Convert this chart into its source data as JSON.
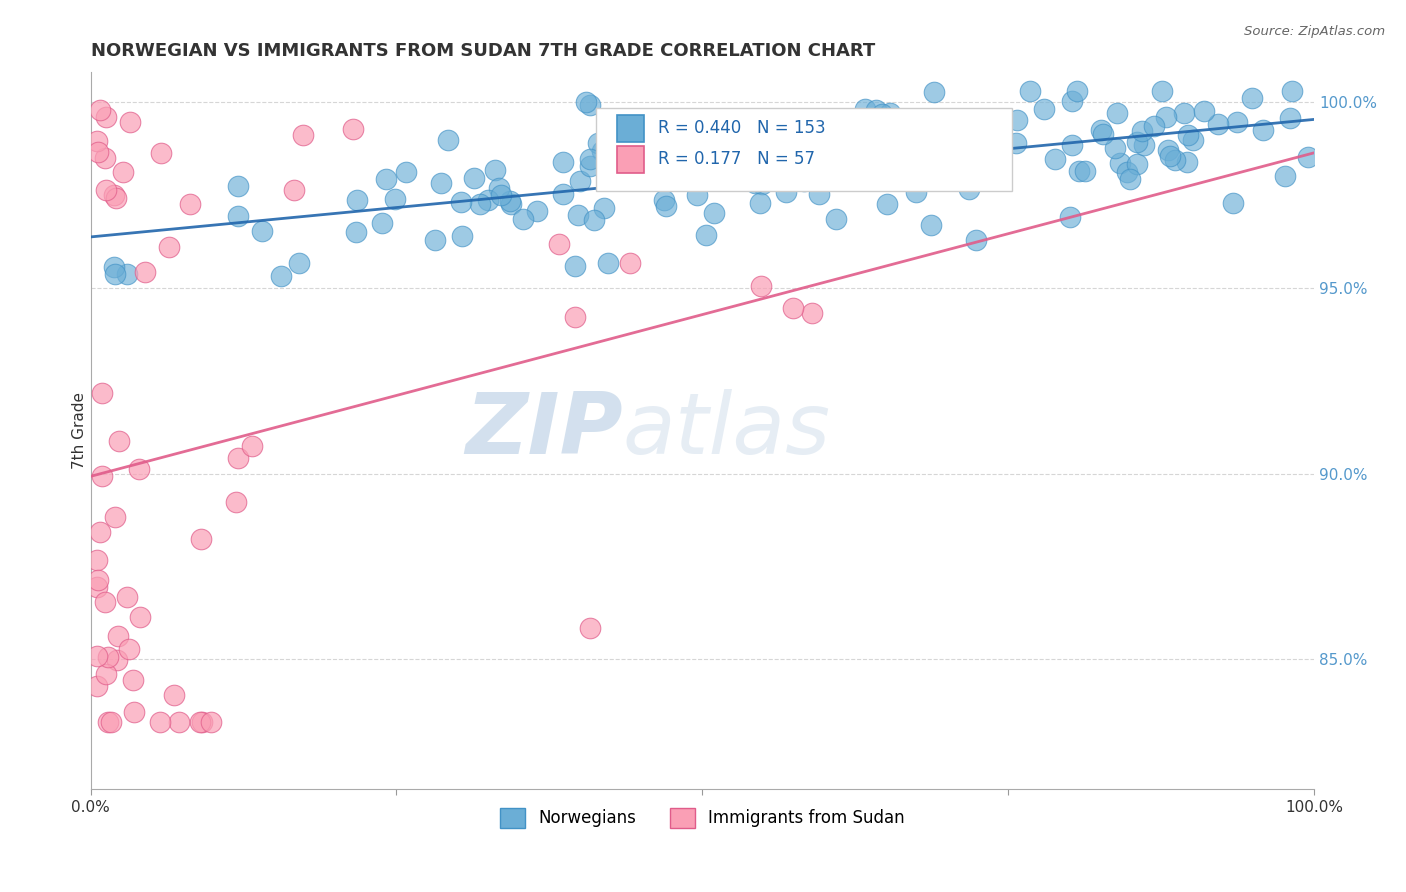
{
  "title": "NORWEGIAN VS IMMIGRANTS FROM SUDAN 7TH GRADE CORRELATION CHART",
  "source": "Source: ZipAtlas.com",
  "ylabel": "7th Grade",
  "xlim": [
    0,
    1
  ],
  "ylim": [
    0.815,
    1.008
  ],
  "yticks": [
    0.85,
    0.9,
    0.95,
    1.0
  ],
  "ytick_labels": [
    "85.0%",
    "90.0%",
    "95.0%",
    "100.0%"
  ],
  "norwegian_color": "#6baed6",
  "sudan_color": "#fa9fb5",
  "norwegian_edge": "#4292c6",
  "sudan_edge": "#e05c8a",
  "trend_norwegian_color": "#2166ac",
  "trend_sudan_color": "#e05c8a",
  "R_norwegian": 0.44,
  "N_norwegian": 153,
  "R_sudan": 0.177,
  "N_sudan": 57,
  "legend_norwegian": "Norwegians",
  "legend_sudan": "Immigrants from Sudan",
  "watermark_zip": "ZIP",
  "watermark_atlas": "atlas",
  "background_color": "#ffffff",
  "grid_color": "#cccccc"
}
